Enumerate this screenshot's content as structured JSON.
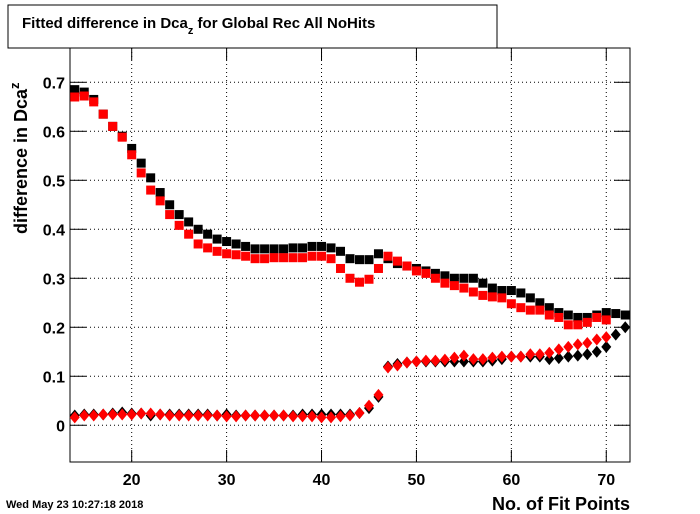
{
  "chart_data": {
    "type": "scatter",
    "title_parts": [
      "Fitted difference in Dca",
      "z",
      " for Global Rec All NoHits"
    ],
    "ylabel_parts": [
      "difference in Dca",
      "z"
    ],
    "xlabel": "No. of Fit Points",
    "timestamp": "Wed May 23 10:27:18 2018",
    "xlim": [
      13.5,
      72.5
    ],
    "ylim": [
      -0.075,
      0.77
    ],
    "xticks": [
      20,
      30,
      40,
      50,
      60,
      70
    ],
    "yticks": [
      0,
      0.1,
      0.2,
      0.3,
      0.4,
      0.5,
      0.6,
      0.7
    ],
    "grid": true,
    "x": [
      14,
      15,
      16,
      17,
      18,
      19,
      20,
      21,
      22,
      23,
      24,
      25,
      26,
      27,
      28,
      29,
      30,
      31,
      32,
      33,
      34,
      35,
      36,
      37,
      38,
      39,
      40,
      41,
      42,
      43,
      44,
      45,
      46,
      47,
      48,
      49,
      50,
      51,
      52,
      53,
      54,
      55,
      56,
      57,
      58,
      59,
      60,
      61,
      62,
      63,
      64,
      65,
      66,
      67,
      68,
      69,
      70,
      71,
      72
    ],
    "series": [
      {
        "marker": "square",
        "color": "#000000",
        "values": [
          0.685,
          0.68,
          0.665,
          0.635,
          0.61,
          0.59,
          0.565,
          0.535,
          0.505,
          0.475,
          0.45,
          0.43,
          0.415,
          0.4,
          0.39,
          0.38,
          0.375,
          0.37,
          0.365,
          0.36,
          0.36,
          0.36,
          0.36,
          0.362,
          0.362,
          0.365,
          0.365,
          0.362,
          0.355,
          0.34,
          0.338,
          0.338,
          0.35,
          0.34,
          0.33,
          0.325,
          0.32,
          0.315,
          0.31,
          0.305,
          0.3,
          0.3,
          0.3,
          0.29,
          0.28,
          0.275,
          0.275,
          0.27,
          0.26,
          0.25,
          0.24,
          0.23,
          0.225,
          0.22,
          0.22,
          0.225,
          0.23,
          0.228,
          0.225
        ]
      },
      {
        "marker": "square",
        "color": "#ff0000",
        "values": [
          0.67,
          0.672,
          0.66,
          0.635,
          0.61,
          0.588,
          0.552,
          0.515,
          0.48,
          0.458,
          0.43,
          0.408,
          0.39,
          0.37,
          0.362,
          0.355,
          0.35,
          0.348,
          0.345,
          0.34,
          0.34,
          0.342,
          0.342,
          0.342,
          0.342,
          0.345,
          0.345,
          0.34,
          0.32,
          0.3,
          0.292,
          0.298,
          0.32,
          0.345,
          0.335,
          0.325,
          0.315,
          0.31,
          0.3,
          0.29,
          0.285,
          0.28,
          0.272,
          0.265,
          0.262,
          0.26,
          0.248,
          0.24,
          0.235,
          0.235,
          0.225,
          0.22,
          0.205,
          0.205,
          0.21,
          0.22,
          0.215,
          null,
          null
        ]
      },
      {
        "marker": "diamond",
        "color": "#000000",
        "values": [
          0.02,
          0.022,
          0.022,
          0.022,
          0.024,
          0.026,
          0.024,
          0.024,
          0.02,
          0.022,
          0.022,
          0.022,
          0.022,
          0.022,
          0.022,
          0.02,
          0.022,
          0.02,
          0.02,
          0.02,
          0.02,
          0.02,
          0.02,
          0.02,
          0.022,
          0.022,
          0.022,
          0.022,
          0.022,
          0.022,
          0.025,
          0.035,
          0.058,
          0.12,
          0.125,
          0.128,
          0.13,
          0.13,
          0.13,
          0.13,
          0.13,
          0.13,
          0.13,
          0.13,
          0.132,
          0.135,
          0.14,
          0.14,
          0.14,
          0.14,
          0.135,
          0.137,
          0.14,
          0.142,
          0.145,
          0.15,
          0.16,
          0.185,
          0.2
        ]
      },
      {
        "marker": "diamond",
        "color": "#ff0000",
        "values": [
          0.016,
          0.02,
          0.02,
          0.022,
          0.022,
          0.022,
          0.022,
          0.024,
          0.024,
          0.022,
          0.02,
          0.02,
          0.02,
          0.02,
          0.02,
          0.02,
          0.018,
          0.018,
          0.02,
          0.02,
          0.02,
          0.02,
          0.02,
          0.018,
          0.018,
          0.018,
          0.016,
          0.016,
          0.018,
          0.02,
          0.025,
          0.04,
          0.062,
          0.118,
          0.122,
          0.128,
          0.13,
          0.132,
          0.132,
          0.134,
          0.138,
          0.142,
          0.135,
          0.135,
          0.138,
          0.14,
          0.14,
          0.14,
          0.145,
          0.145,
          0.148,
          0.155,
          0.16,
          0.165,
          0.168,
          0.175,
          0.18,
          null,
          null
        ]
      }
    ]
  }
}
